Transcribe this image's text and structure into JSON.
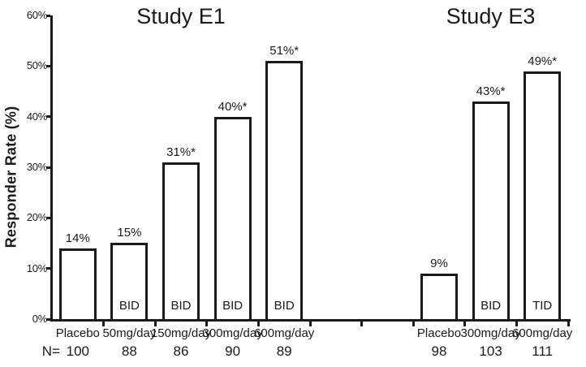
{
  "chart_data": {
    "type": "bar",
    "title": "",
    "ylabel": "Responder Rate (%)",
    "xlabel": "",
    "ylim": [
      0,
      60
    ],
    "ytick_step": 10,
    "ytick_labels": [
      "0%",
      "10%",
      "20%",
      "30%",
      "40%",
      "50%",
      "60%"
    ],
    "grid": false,
    "legend": "none",
    "n_row_label": "N=",
    "bar_fill": "#ffffff",
    "bar_border": "#1a1a1a",
    "text_color": "#1a1a1a",
    "groups": [
      {
        "title": "Study E1",
        "categories": [
          "Placebo",
          "50mg/day",
          "150mg/day",
          "300mg/day",
          "600mg/day"
        ],
        "values": [
          14,
          15,
          31,
          40,
          51
        ],
        "bar_labels": [
          "14%",
          "15%",
          "31%*",
          "40%*",
          "51%*"
        ],
        "regimen_labels": [
          "",
          "BID",
          "BID",
          "BID",
          "BID"
        ],
        "n_values": [
          "100",
          "88",
          "86",
          "90",
          "89"
        ]
      },
      {
        "title": "Study E3",
        "categories": [
          "Placebo",
          "300mg/day",
          "600mg/day"
        ],
        "values": [
          9,
          43,
          49
        ],
        "bar_labels": [
          "9%",
          "43%*",
          "49%*"
        ],
        "regimen_labels": [
          "",
          "BID",
          "TID"
        ],
        "n_values": [
          "98",
          "103",
          "111"
        ]
      }
    ]
  }
}
